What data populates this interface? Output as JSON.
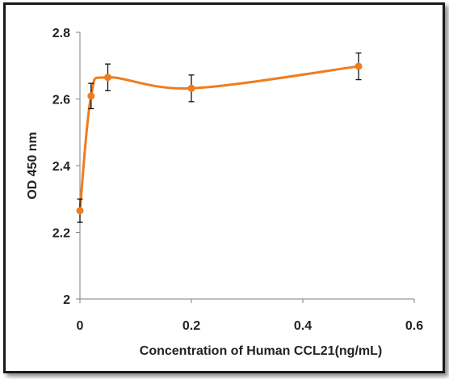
{
  "chart_data": {
    "type": "line",
    "title": "",
    "xlabel": "Concentration of Human CCL21(ng/mL)",
    "ylabel": "OD 450 nm",
    "xlim": [
      0,
      0.6
    ],
    "ylim": [
      2,
      2.8
    ],
    "xticks": [
      "0",
      "0.2",
      "0.4",
      "0.6"
    ],
    "yticks": [
      "2",
      "2.2",
      "2.4",
      "2.6",
      "2.8"
    ],
    "grid": false,
    "legend": "none",
    "series": [
      {
        "color": "#f07c1e",
        "smooth": true,
        "x": [
          0,
          0.02,
          0.05,
          0.2,
          0.5
        ],
        "y": [
          2.265,
          2.609,
          2.665,
          2.632,
          2.698
        ],
        "yerr": [
          0.035,
          0.038,
          0.04,
          0.04,
          0.04
        ]
      }
    ]
  }
}
